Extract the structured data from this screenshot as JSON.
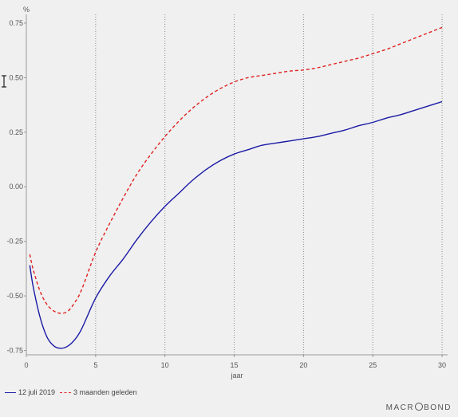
{
  "chart_data": {
    "type": "line",
    "unit_label": "%",
    "xlabel": "jaar",
    "xlim": [
      0,
      30.4
    ],
    "ylim": [
      -0.77,
      0.79
    ],
    "x_ticks": [
      0,
      5,
      10,
      15,
      20,
      25,
      30
    ],
    "y_ticks": [
      -0.75,
      -0.5,
      -0.25,
      0.0,
      0.25,
      0.5,
      0.75
    ],
    "y_tick_labels": [
      "-0.75",
      "-0.50",
      "-0.25",
      "0.00",
      "0.25",
      "0.50",
      "0.75"
    ],
    "grid": "vertical dotted",
    "legend_position": "bottom-left",
    "series": [
      {
        "name": "12 juli 2019",
        "color": "#1a1aa6",
        "style": "solid",
        "x": [
          0.25,
          0.5,
          1,
          1.5,
          2,
          2.5,
          3,
          3.5,
          4,
          5,
          6,
          7,
          8,
          9,
          10,
          11,
          12,
          13,
          14,
          15,
          16,
          17,
          18,
          19,
          20,
          21,
          22,
          23,
          24,
          25,
          26,
          27,
          28,
          29,
          30
        ],
        "values": [
          -0.36,
          -0.46,
          -0.6,
          -0.69,
          -0.73,
          -0.74,
          -0.73,
          -0.7,
          -0.65,
          -0.51,
          -0.41,
          -0.33,
          -0.24,
          -0.16,
          -0.09,
          -0.03,
          0.03,
          0.08,
          0.12,
          0.15,
          0.17,
          0.19,
          0.2,
          0.21,
          0.22,
          0.23,
          0.245,
          0.26,
          0.28,
          0.295,
          0.315,
          0.33,
          0.35,
          0.37,
          0.39
        ]
      },
      {
        "name": "3 maanden geleden",
        "color": "#e02020",
        "style": "dashed",
        "x": [
          0.25,
          0.5,
          1,
          1.5,
          2,
          2.5,
          3,
          3.5,
          4,
          5,
          6,
          7,
          8,
          9,
          10,
          11,
          12,
          13,
          14,
          15,
          16,
          17,
          18,
          19,
          20,
          21,
          22,
          23,
          24,
          25,
          26,
          27,
          28,
          29,
          30
        ],
        "values": [
          -0.31,
          -0.38,
          -0.48,
          -0.54,
          -0.57,
          -0.58,
          -0.57,
          -0.53,
          -0.47,
          -0.3,
          -0.17,
          -0.05,
          0.06,
          0.15,
          0.23,
          0.3,
          0.36,
          0.41,
          0.45,
          0.48,
          0.5,
          0.51,
          0.52,
          0.53,
          0.535,
          0.545,
          0.56,
          0.575,
          0.59,
          0.61,
          0.63,
          0.655,
          0.68,
          0.705,
          0.73
        ]
      }
    ]
  },
  "brand": {
    "text_left": "MACR",
    "text_right": "BOND"
  }
}
